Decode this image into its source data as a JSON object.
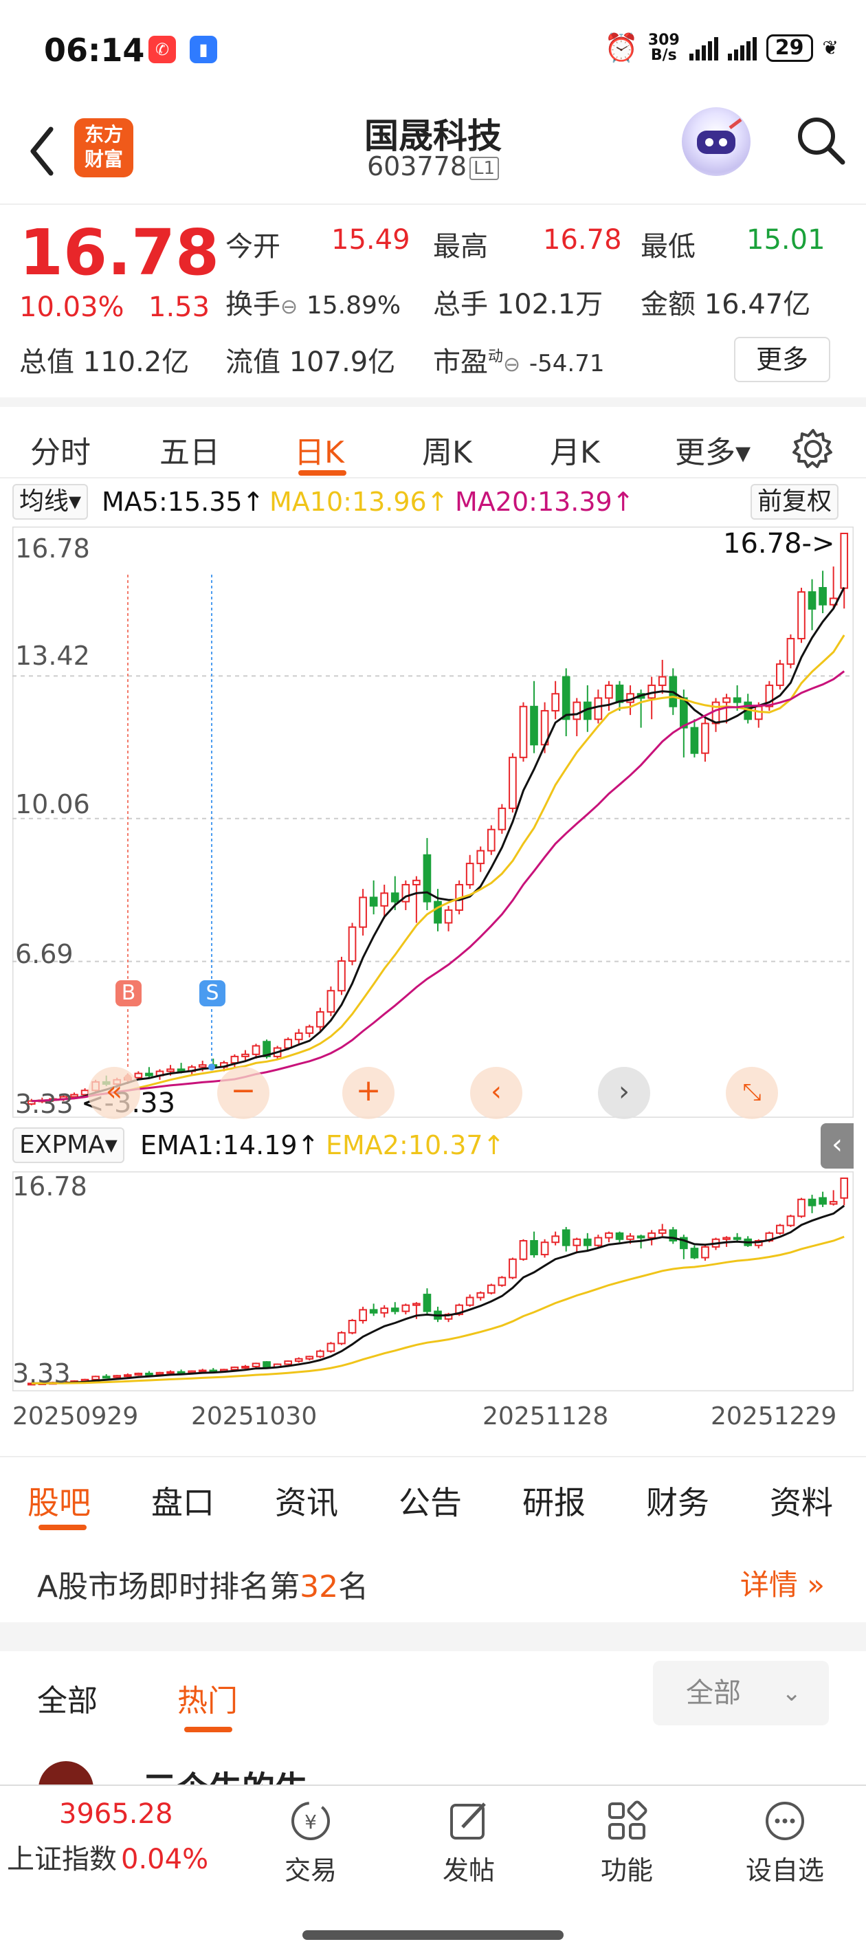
{
  "status_bar": {
    "time": "06:14",
    "net_speed_top": "309",
    "net_speed_unit": "B/s",
    "battery": "29"
  },
  "header": {
    "logo_line1": "东方",
    "logo_line2": "财富",
    "name": "国晟科技",
    "code": "603778",
    "code_badge": "L1"
  },
  "quote": {
    "price": "16.78",
    "change_pct": "10.03%",
    "change": "1.53",
    "open_label": "今开",
    "open": "15.49",
    "high_label": "最高",
    "high": "16.78",
    "low_label": "最低",
    "low": "15.01",
    "turnover_label": "换手",
    "turnover": "15.89%",
    "volume_label": "总手",
    "volume": "102.1万",
    "amount_label": "金额",
    "amount": "16.47亿",
    "mktcap_label": "总值",
    "mktcap": "110.2亿",
    "float_label": "流值",
    "float_cap": "107.9亿",
    "pe_label": "市盈",
    "pe_sup": "动",
    "pe": "-54.71",
    "more_label": "更多"
  },
  "period_tabs": [
    "分时",
    "五日",
    "日K",
    "周K",
    "月K",
    "更多▾"
  ],
  "ma_bar": {
    "selector": "均线▾",
    "ma5": "MA5:15.35↑",
    "ma10": "MA10:13.96↑",
    "ma20": "MA20:13.39↑",
    "adjust": "前复权"
  },
  "main_chart": {
    "price_labels": [
      "16.78",
      "13.42",
      "10.06",
      "6.69",
      "3.33"
    ],
    "max_marker": "16.78->",
    "min_marker": "<-3.33",
    "buy_marker": "B",
    "sell_marker": "S"
  },
  "ema_bar": {
    "selector": "EXPMA▾",
    "ema1": "EMA1:14.19↑",
    "ema2": "EMA2:10.37↑"
  },
  "sub_chart": {
    "top": "16.78",
    "bottom": "3.33"
  },
  "x_labels": [
    "20250929",
    "20251030",
    "20251128",
    "20251229"
  ],
  "chart_data": {
    "type": "candlestick",
    "ylim": [
      3.33,
      16.78
    ],
    "candles": [
      [
        3.33,
        3.45,
        3.3,
        3.4
      ],
      [
        3.4,
        3.48,
        3.35,
        3.42
      ],
      [
        3.42,
        3.5,
        3.38,
        3.45
      ],
      [
        3.45,
        3.55,
        3.4,
        3.5
      ],
      [
        3.5,
        3.6,
        3.45,
        3.55
      ],
      [
        3.55,
        3.7,
        3.5,
        3.65
      ],
      [
        3.65,
        3.9,
        3.6,
        3.85
      ],
      [
        3.85,
        4.0,
        3.75,
        3.8
      ],
      [
        3.8,
        3.95,
        3.7,
        3.9
      ],
      [
        3.9,
        4.05,
        3.8,
        3.95
      ],
      [
        3.95,
        4.1,
        3.9,
        4.05
      ],
      [
        4.05,
        4.2,
        3.95,
        4.0
      ],
      [
        4.0,
        4.15,
        3.9,
        4.1
      ],
      [
        4.1,
        4.25,
        4.0,
        4.15
      ],
      [
        4.15,
        4.3,
        4.05,
        4.1
      ],
      [
        4.1,
        4.25,
        4.0,
        4.2
      ],
      [
        4.2,
        4.35,
        4.1,
        4.25
      ],
      [
        4.25,
        4.4,
        4.15,
        4.2
      ],
      [
        4.2,
        4.35,
        4.1,
        4.3
      ],
      [
        4.3,
        4.5,
        4.2,
        4.45
      ],
      [
        4.45,
        4.6,
        4.35,
        4.5
      ],
      [
        4.5,
        4.75,
        4.4,
        4.7
      ],
      [
        4.8,
        4.85,
        4.4,
        4.45
      ],
      [
        4.45,
        4.7,
        4.4,
        4.65
      ],
      [
        4.65,
        4.9,
        4.6,
        4.85
      ],
      [
        4.85,
        5.1,
        4.75,
        5.0
      ],
      [
        5.0,
        5.2,
        4.9,
        5.15
      ],
      [
        5.15,
        5.6,
        5.05,
        5.5
      ],
      [
        5.5,
        6.1,
        5.4,
        6.0
      ],
      [
        6.0,
        6.8,
        5.9,
        6.7
      ],
      [
        6.7,
        7.6,
        6.6,
        7.5
      ],
      [
        7.5,
        8.4,
        7.3,
        8.2
      ],
      [
        8.2,
        8.6,
        7.8,
        8.0
      ],
      [
        8.0,
        8.5,
        7.7,
        8.3
      ],
      [
        8.3,
        8.7,
        7.9,
        8.1
      ],
      [
        8.1,
        8.6,
        7.9,
        8.5
      ],
      [
        8.5,
        8.7,
        7.6,
        8.6
      ],
      [
        9.2,
        9.6,
        7.9,
        8.1
      ],
      [
        8.1,
        8.4,
        7.4,
        7.6
      ],
      [
        7.6,
        8.0,
        7.4,
        7.9
      ],
      [
        7.9,
        8.6,
        7.8,
        8.5
      ],
      [
        8.5,
        9.2,
        8.4,
        9.0
      ],
      [
        9.0,
        9.4,
        8.8,
        9.3
      ],
      [
        9.3,
        9.9,
        9.2,
        9.8
      ],
      [
        9.8,
        10.4,
        9.7,
        10.3
      ],
      [
        10.3,
        11.6,
        10.2,
        11.5
      ],
      [
        11.5,
        12.8,
        11.4,
        12.7
      ],
      [
        12.7,
        13.3,
        11.6,
        11.8
      ],
      [
        11.8,
        12.8,
        11.6,
        12.6
      ],
      [
        12.6,
        13.3,
        12.4,
        13.0
      ],
      [
        13.4,
        13.6,
        12.0,
        12.4
      ],
      [
        12.4,
        12.9,
        12.0,
        12.8
      ],
      [
        12.8,
        13.2,
        12.1,
        12.4
      ],
      [
        12.4,
        13.1,
        12.3,
        12.9
      ],
      [
        12.9,
        13.3,
        12.6,
        13.2
      ],
      [
        13.2,
        13.3,
        12.6,
        12.8
      ],
      [
        12.8,
        13.2,
        12.5,
        13.0
      ],
      [
        13.0,
        13.1,
        12.2,
        12.9
      ],
      [
        12.9,
        13.4,
        12.4,
        13.2
      ],
      [
        13.2,
        13.8,
        13.0,
        13.4
      ],
      [
        13.4,
        13.6,
        12.5,
        12.7
      ],
      [
        12.9,
        13.1,
        11.5,
        12.2
      ],
      [
        12.2,
        12.4,
        11.5,
        11.6
      ],
      [
        11.6,
        12.5,
        11.4,
        12.3
      ],
      [
        12.3,
        12.9,
        12.1,
        12.8
      ],
      [
        12.8,
        13.0,
        12.3,
        12.9
      ],
      [
        12.9,
        13.2,
        12.6,
        12.8
      ],
      [
        12.8,
        13.0,
        12.3,
        12.4
      ],
      [
        12.4,
        12.8,
        12.2,
        12.7
      ],
      [
        12.7,
        13.3,
        12.6,
        13.2
      ],
      [
        13.2,
        13.8,
        13.1,
        13.7
      ],
      [
        13.7,
        14.4,
        13.6,
        14.3
      ],
      [
        14.3,
        15.5,
        14.2,
        15.4
      ],
      [
        15.4,
        15.7,
        14.5,
        15.0
      ],
      [
        15.5,
        15.9,
        14.9,
        15.1
      ],
      [
        15.1,
        16.0,
        15.0,
        15.25
      ],
      [
        15.49,
        16.78,
        15.01,
        16.78
      ]
    ],
    "series": [
      {
        "name": "MA5",
        "last": 15.35
      },
      {
        "name": "MA10",
        "last": 13.96
      },
      {
        "name": "MA20",
        "last": 13.39
      }
    ]
  },
  "info_tabs": [
    "股吧",
    "盘口",
    "资讯",
    "公告",
    "研报",
    "财务",
    "资料"
  ],
  "rank": {
    "prefix": "A股市场即时排名第",
    "number": "32",
    "suffix": "名",
    "more": "详情"
  },
  "feed": {
    "tab_all": "全部",
    "tab_hot": "热门",
    "filter": "全部",
    "peek_text": "三个牛的牛"
  },
  "bottom": {
    "index_value": "3965.28",
    "index_name": "上证指数",
    "index_pct": "0.04%",
    "nav": [
      "交易",
      "发帖",
      "功能",
      "设自选"
    ]
  },
  "colors": {
    "up": "#e8262a",
    "down": "#1aa13a",
    "accent": "#f05a14",
    "ma5": "#111111",
    "ma10": "#f0c419",
    "ma20": "#c8127a"
  }
}
